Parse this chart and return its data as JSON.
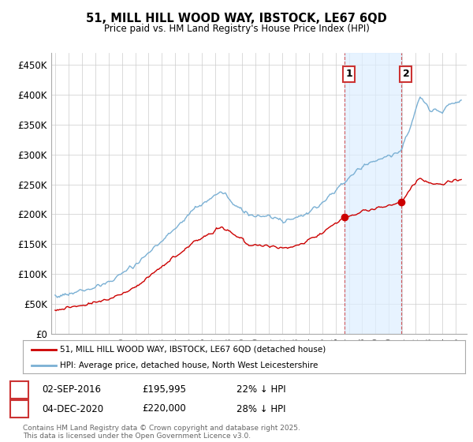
{
  "title1": "51, MILL HILL WOOD WAY, IBSTOCK, LE67 6QD",
  "title2": "Price paid vs. HM Land Registry's House Price Index (HPI)",
  "ylim": [
    0,
    470000
  ],
  "yticks": [
    0,
    50000,
    100000,
    150000,
    200000,
    250000,
    300000,
    350000,
    400000,
    450000
  ],
  "ytick_labels": [
    "£0",
    "£50K",
    "£100K",
    "£150K",
    "£200K",
    "£250K",
    "£300K",
    "£350K",
    "£400K",
    "£450K"
  ],
  "sale1_date": "02-SEP-2016",
  "sale1_price": 195995,
  "sale1_label": "£195,995",
  "sale1_hpi_diff": "22% ↓ HPI",
  "sale2_date": "04-DEC-2020",
  "sale2_price": 220000,
  "sale2_label": "£220,000",
  "sale2_hpi_diff": "28% ↓ HPI",
  "legend_label_red": "51, MILL HILL WOOD WAY, IBSTOCK, LE67 6QD (detached house)",
  "legend_label_blue": "HPI: Average price, detached house, North West Leicestershire",
  "footer": "Contains HM Land Registry data © Crown copyright and database right 2025.\nThis data is licensed under the Open Government Licence v3.0.",
  "red_color": "#cc0000",
  "blue_color": "#7ab0d4",
  "annotation_box_color": "#cc3333",
  "vline_color": "#cc3333",
  "shade_color": "#ddeeff",
  "background_color": "#ffffff",
  "grid_color": "#cccccc"
}
